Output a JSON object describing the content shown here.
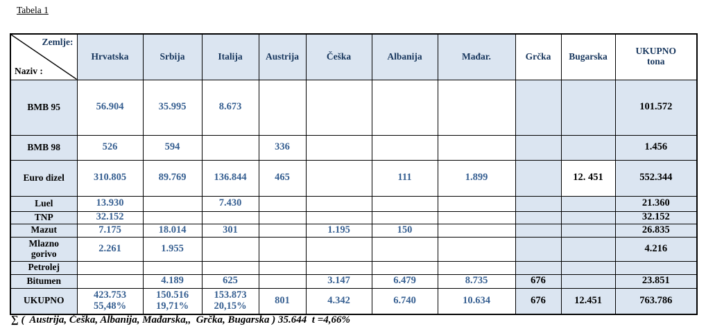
{
  "title": "Tabela 1",
  "colors": {
    "shade": "#dbe5f1",
    "blue": "#365f91",
    "navy": "#17365d"
  },
  "table": {
    "header": {
      "corner_top": "Zemlje:",
      "corner_bottom": "Naziv :",
      "columns": [
        "Hrvatska",
        "Srbija",
        "Italija",
        "Austrija",
        "Češka",
        "Albanija",
        "Mađar.",
        "Grčka",
        "Bugarska",
        "UKUPNO\ntona"
      ]
    },
    "rows": [
      {
        "label": "BMB 95",
        "values": [
          "56.904",
          "35.995",
          "8.673",
          "",
          "",
          "",
          "",
          "",
          "",
          "101.572"
        ]
      },
      {
        "label": "BMB 98",
        "values": [
          "526",
          "594",
          "",
          "336",
          "",
          "",
          "",
          "",
          "",
          "1.456"
        ]
      },
      {
        "label": "Euro dizel",
        "values": [
          "310.805",
          "89.769",
          "136.844",
          "465",
          "",
          "111",
          "1.899",
          "",
          "12. 451",
          "552.344"
        ]
      },
      {
        "label": "Luel",
        "values": [
          "13.930",
          "",
          "7.430",
          "",
          "",
          "",
          "",
          "",
          "",
          "21.360"
        ]
      },
      {
        "label": "TNP",
        "values": [
          "32.152",
          "",
          "",
          "",
          "",
          "",
          "",
          "",
          "",
          "32.152"
        ]
      },
      {
        "label": "Mazut",
        "values": [
          "7.175",
          "18.014",
          "301",
          "",
          "1.195",
          "150",
          "",
          "",
          "",
          "26.835"
        ]
      },
      {
        "label": "Mlazno\ngorivo",
        "values": [
          "2.261",
          "1.955",
          "",
          "",
          "",
          "",
          "",
          "",
          "",
          "4.216"
        ]
      },
      {
        "label": "Petrolej",
        "values": [
          "",
          "",
          "",
          "",
          "",
          "",
          "",
          "",
          "",
          ""
        ]
      },
      {
        "label": "Bitumen",
        "values": [
          "",
          "4.189",
          "625",
          "",
          "3.147",
          "6.479",
          "8.735",
          "676",
          "",
          "23.851"
        ]
      },
      {
        "label": "UKUPNO",
        "values": [
          "423.753\n55,48%",
          "150.516\n19,71%",
          "153.873\n20,15%",
          "801",
          "4.342",
          "6.740",
          "10.634",
          "676",
          "12.451",
          "763.786"
        ]
      }
    ]
  },
  "footer": {
    "sum_note": "∑ (  Austrija, Češka, Albanija, Mađarska,,  Grčka, Bugarska ) 35.644  t =4,66%"
  }
}
